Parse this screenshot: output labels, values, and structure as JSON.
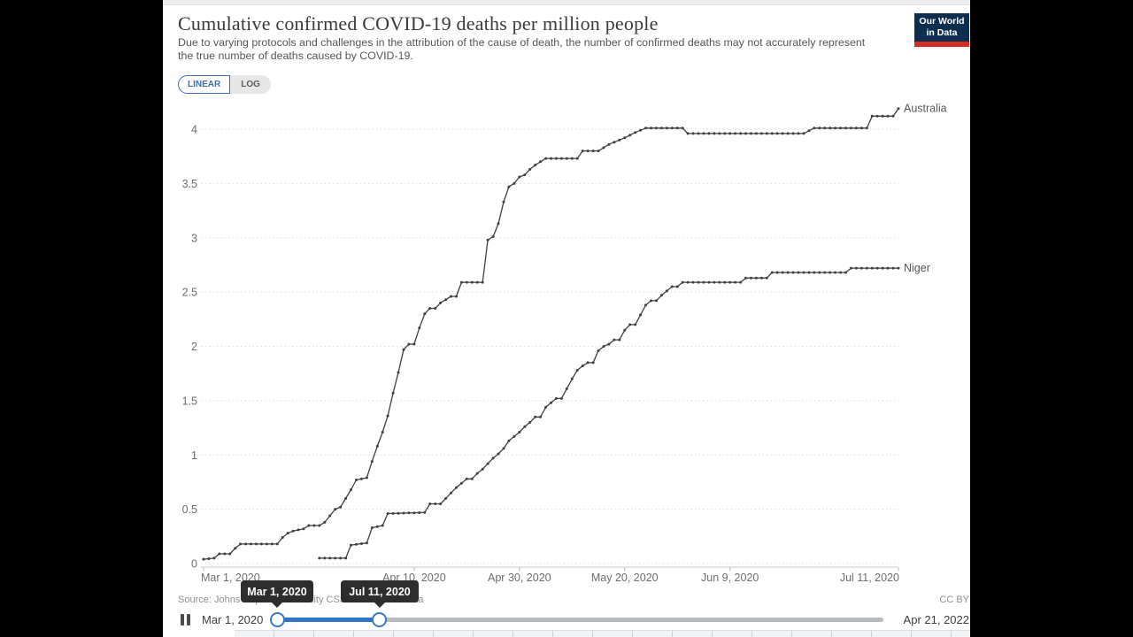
{
  "header": {
    "title": "Cumulative confirmed COVID-19 deaths per million people",
    "subtitle": "Due to varying protocols and challenges in the attribution of the cause of death, the number of confirmed deaths may not accurately represent the true number of deaths caused by COVID-19.",
    "logo_line1": "Our World",
    "logo_line2": "in Data"
  },
  "controls": {
    "linear_label": "LINEAR",
    "log_label": "LOG",
    "selected": "LINEAR"
  },
  "chart_data": {
    "type": "line",
    "title": "Cumulative confirmed COVID-19 deaths per million people",
    "xlabel": "",
    "ylabel": "",
    "grid": true,
    "legend_position": "line-end-labels",
    "x_axis": {
      "start_day_date": "Mar 1, 2020",
      "range_days": [
        0,
        132
      ],
      "ticks": [
        {
          "label": "Mar 1, 2020",
          "day": 0
        },
        {
          "label": "Apr 10, 2020",
          "day": 40
        },
        {
          "label": "Apr 30, 2020",
          "day": 60
        },
        {
          "label": "May 20, 2020",
          "day": 80
        },
        {
          "label": "Jun 9, 2020",
          "day": 100
        },
        {
          "label": "Jul 11, 2020",
          "day": 132
        }
      ]
    },
    "y_axis": {
      "ticks": [
        0,
        0.5,
        1,
        1.5,
        2,
        2.5,
        3,
        3.5,
        4
      ],
      "range": [
        0,
        4.3
      ]
    },
    "series": [
      {
        "name": "Australia",
        "points": [
          [
            0,
            0.04
          ],
          [
            2,
            0.05
          ],
          [
            3,
            0.09
          ],
          [
            5,
            0.09
          ],
          [
            6,
            0.14
          ],
          [
            7,
            0.18
          ],
          [
            14,
            0.18
          ],
          [
            15,
            0.24
          ],
          [
            16,
            0.28
          ],
          [
            17,
            0.3
          ],
          [
            19,
            0.32
          ],
          [
            20,
            0.35
          ],
          [
            22,
            0.35
          ],
          [
            23,
            0.38
          ],
          [
            25,
            0.5
          ],
          [
            26,
            0.52
          ],
          [
            28,
            0.68
          ],
          [
            29,
            0.77
          ],
          [
            31,
            0.79
          ],
          [
            32,
            0.94
          ],
          [
            33,
            1.08
          ],
          [
            34,
            1.21
          ],
          [
            35,
            1.36
          ],
          [
            36,
            1.57
          ],
          [
            37,
            1.76
          ],
          [
            38,
            1.97
          ],
          [
            39,
            2.02
          ],
          [
            40,
            2.02
          ],
          [
            41,
            2.17
          ],
          [
            42,
            2.3
          ],
          [
            43,
            2.35
          ],
          [
            44,
            2.35
          ],
          [
            45,
            2.4
          ],
          [
            46,
            2.43
          ],
          [
            47,
            2.46
          ],
          [
            48,
            2.46
          ],
          [
            49,
            2.59
          ],
          [
            53,
            2.59
          ],
          [
            54,
            2.98
          ],
          [
            55,
            3.01
          ],
          [
            56,
            3.13
          ],
          [
            57,
            3.33
          ],
          [
            58,
            3.47
          ],
          [
            59,
            3.5
          ],
          [
            60,
            3.56
          ],
          [
            61,
            3.58
          ],
          [
            62,
            3.63
          ],
          [
            63,
            3.67
          ],
          [
            64,
            3.7
          ],
          [
            65,
            3.73
          ],
          [
            71,
            3.73
          ],
          [
            72,
            3.8
          ],
          [
            75,
            3.8
          ],
          [
            76,
            3.83
          ],
          [
            77,
            3.86
          ],
          [
            78,
            3.88
          ],
          [
            80,
            3.92
          ],
          [
            82,
            3.97
          ],
          [
            84,
            4.01
          ],
          [
            91,
            4.01
          ],
          [
            92,
            3.96
          ],
          [
            114,
            3.96
          ],
          [
            116,
            4.01
          ],
          [
            126,
            4.01
          ],
          [
            127,
            4.12
          ],
          [
            131,
            4.12
          ],
          [
            132,
            4.19
          ]
        ]
      },
      {
        "name": "Niger",
        "points": [
          [
            22,
            0.05
          ],
          [
            27,
            0.05
          ],
          [
            28,
            0.17
          ],
          [
            31,
            0.19
          ],
          [
            32,
            0.33
          ],
          [
            34,
            0.35
          ],
          [
            35,
            0.46
          ],
          [
            42,
            0.47
          ],
          [
            43,
            0.55
          ],
          [
            45,
            0.55
          ],
          [
            46,
            0.6
          ],
          [
            47,
            0.65
          ],
          [
            48,
            0.7
          ],
          [
            49,
            0.74
          ],
          [
            50,
            0.78
          ],
          [
            51,
            0.78
          ],
          [
            52,
            0.83
          ],
          [
            53,
            0.87
          ],
          [
            54,
            0.92
          ],
          [
            55,
            0.97
          ],
          [
            56,
            1.01
          ],
          [
            57,
            1.06
          ],
          [
            58,
            1.13
          ],
          [
            59,
            1.17
          ],
          [
            60,
            1.21
          ],
          [
            61,
            1.26
          ],
          [
            62,
            1.3
          ],
          [
            63,
            1.35
          ],
          [
            64,
            1.35
          ],
          [
            65,
            1.44
          ],
          [
            66,
            1.48
          ],
          [
            67,
            1.52
          ],
          [
            68,
            1.52
          ],
          [
            69,
            1.61
          ],
          [
            70,
            1.7
          ],
          [
            71,
            1.78
          ],
          [
            72,
            1.82
          ],
          [
            73,
            1.85
          ],
          [
            74,
            1.85
          ],
          [
            75,
            1.96
          ],
          [
            76,
            2.0
          ],
          [
            77,
            2.02
          ],
          [
            78,
            2.06
          ],
          [
            79,
            2.06
          ],
          [
            80,
            2.15
          ],
          [
            81,
            2.2
          ],
          [
            82,
            2.2
          ],
          [
            83,
            2.29
          ],
          [
            84,
            2.38
          ],
          [
            85,
            2.42
          ],
          [
            86,
            2.42
          ],
          [
            87,
            2.47
          ],
          [
            88,
            2.51
          ],
          [
            89,
            2.55
          ],
          [
            90,
            2.55
          ],
          [
            91,
            2.59
          ],
          [
            102,
            2.59
          ],
          [
            103,
            2.63
          ],
          [
            107,
            2.63
          ],
          [
            108,
            2.68
          ],
          [
            122,
            2.68
          ],
          [
            123,
            2.72
          ],
          [
            132,
            2.72
          ]
        ]
      }
    ],
    "line_color": "#3f3f3f"
  },
  "footer": {
    "source": "Source: Johns Hopkins University CSSE COVID-19 Data",
    "license": "CC BY"
  },
  "timeline": {
    "tooltip_start": "Mar 1, 2020",
    "tooltip_end": "Jul 11, 2020",
    "start_label": "Mar 1, 2020",
    "end_label": "Apr 21, 2022"
  },
  "colors": {
    "accent_blue": "#2e74c8",
    "toggle_blue": "#3b6fb2",
    "line": "#3f3f3f",
    "tooltip_bg": "#2d2d2d",
    "logo_bg": "#0d2e4e",
    "logo_stripe": "#d22f22"
  }
}
